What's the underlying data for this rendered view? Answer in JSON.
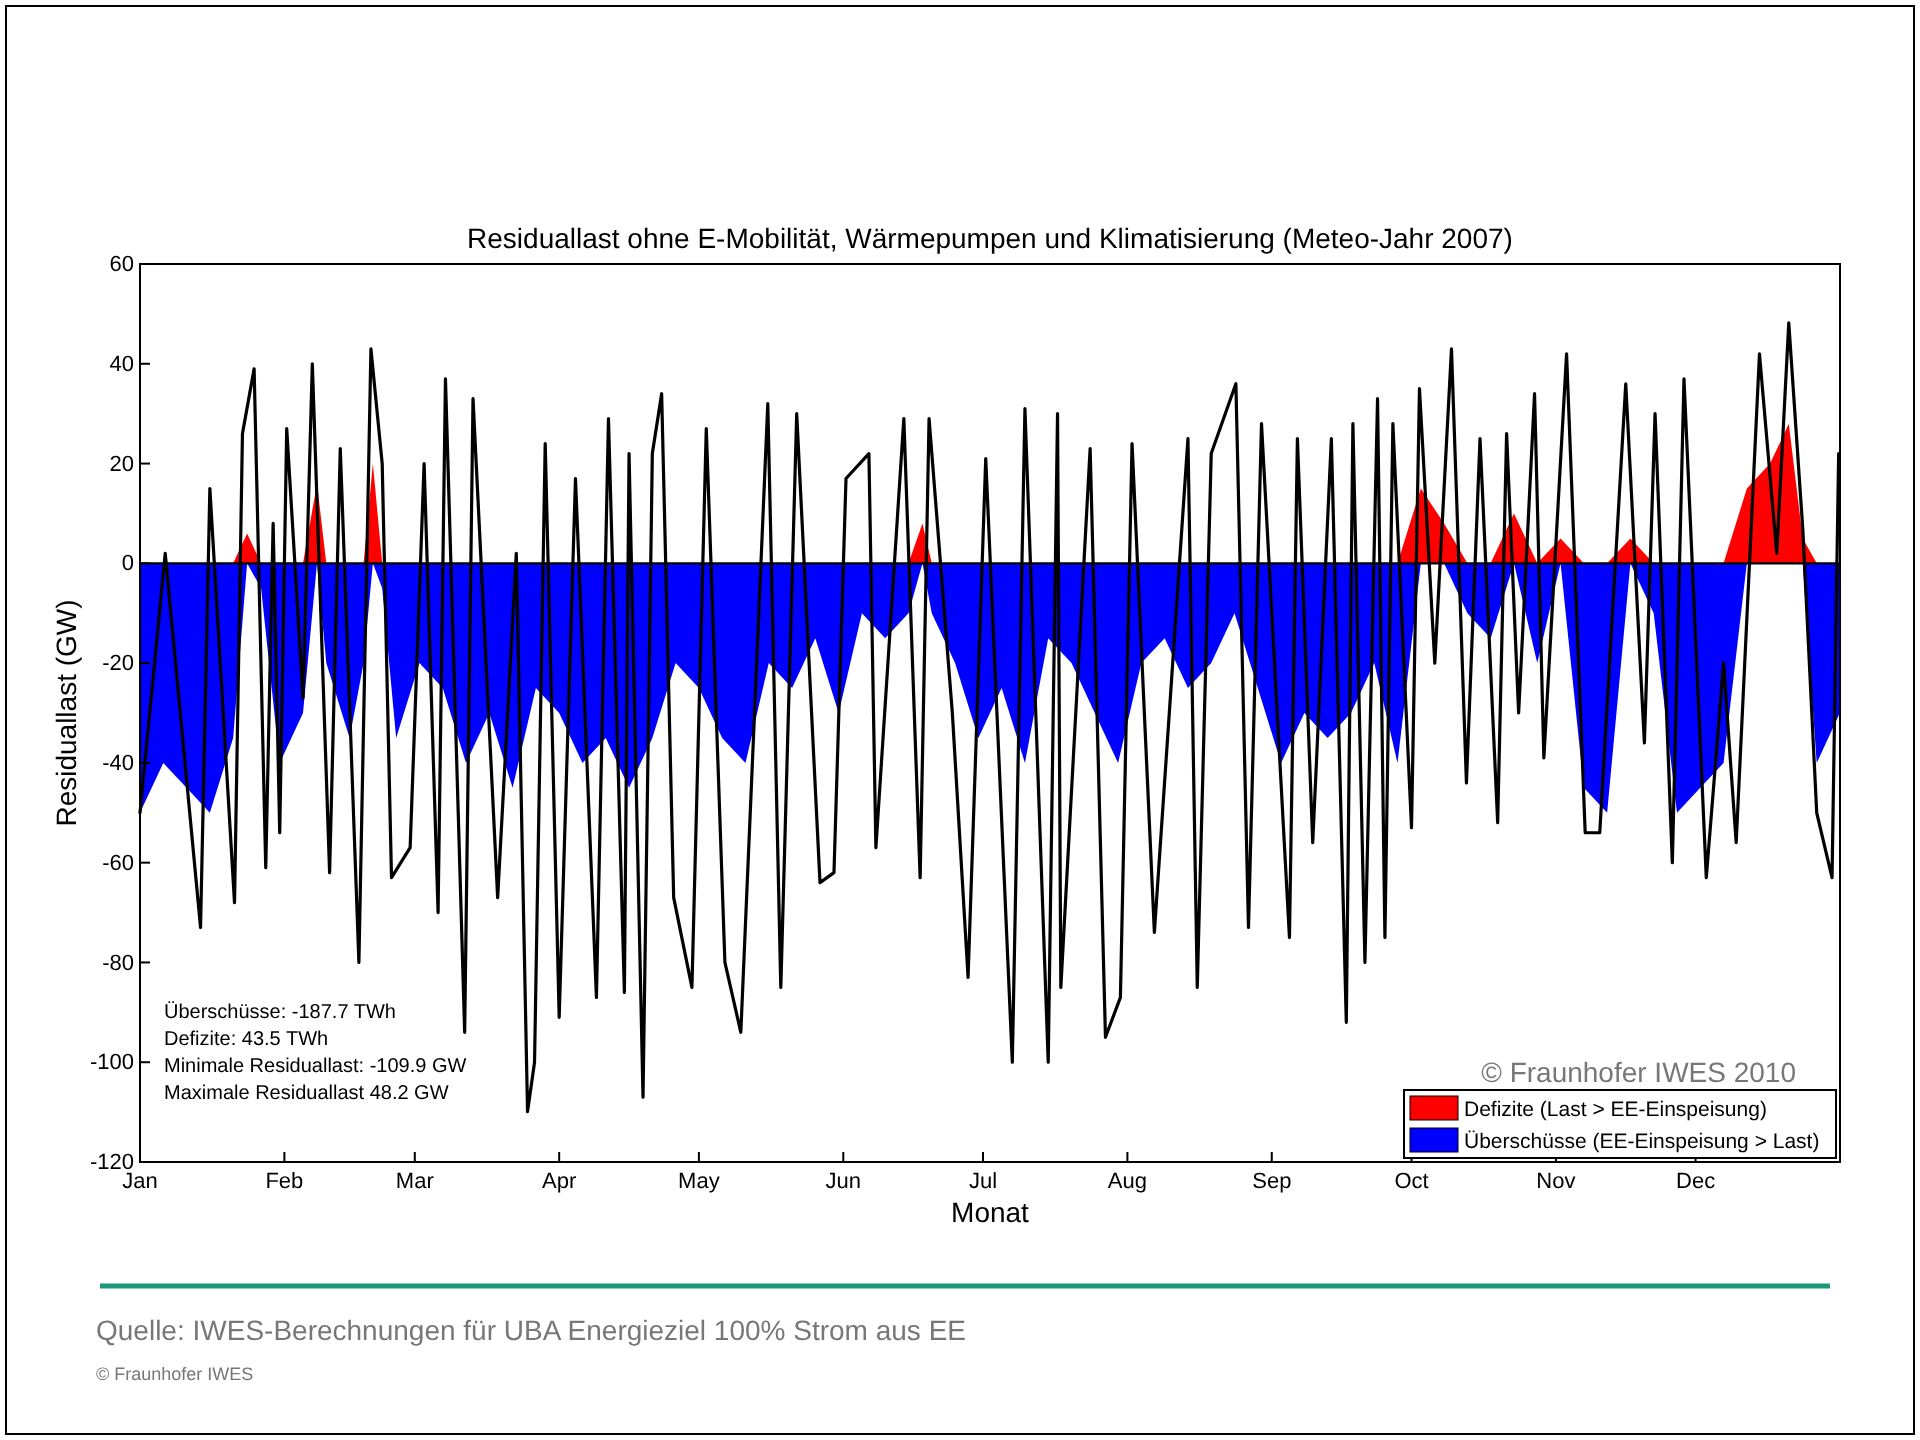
{
  "chart_data": {
    "type": "line",
    "title": "Residuallast ohne E-Mobilität, Wärmepumpen und Klimatisierung (Meteo-Jahr 2007)",
    "xlabel": "Monat",
    "ylabel": "Residuallast (GW)",
    "xlim": [
      "2007-01-01",
      "2008-01-01"
    ],
    "xticks": [
      {
        "value": "2007-01-01",
        "label": "Jan"
      },
      {
        "value": "2007-02-01",
        "label": "Feb"
      },
      {
        "value": "2007-03-01",
        "label": "Mar"
      },
      {
        "value": "2007-04-01",
        "label": "Apr"
      },
      {
        "value": "2007-05-01",
        "label": "May"
      },
      {
        "value": "2007-06-01",
        "label": "Jun"
      },
      {
        "value": "2007-07-01",
        "label": "Jul"
      },
      {
        "value": "2007-08-01",
        "label": "Aug"
      },
      {
        "value": "2007-09-01",
        "label": "Sep"
      },
      {
        "value": "2007-10-01",
        "label": "Oct"
      },
      {
        "value": "2007-11-01",
        "label": "Nov"
      },
      {
        "value": "2007-12-01",
        "label": "Dec"
      }
    ],
    "ylim": [
      -120,
      60
    ],
    "yticks": [
      -120,
      -100,
      -80,
      -60,
      -40,
      -20,
      0,
      20,
      40,
      60
    ],
    "grid": false,
    "legend": "bottom right",
    "ref_lines": [
      {
        "axis": "y",
        "value": 0,
        "color": "#000000"
      }
    ],
    "series": [
      {
        "name": "Defizite (Last > EE-Einspeisung)",
        "type": "area",
        "color": "#ff0000",
        "x": [
          "2007-01-01",
          "2007-01-06",
          "2007-01-11",
          "2007-01-16",
          "2007-01-21",
          "2007-01-24",
          "2007-01-27",
          "2007-01-31",
          "2007-02-05",
          "2007-02-08",
          "2007-02-10",
          "2007-02-15",
          "2007-02-18",
          "2007-02-20",
          "2007-02-22",
          "2007-02-25",
          "2007-03-02",
          "2007-03-07",
          "2007-03-12",
          "2007-03-17",
          "2007-03-22",
          "2007-03-27",
          "2007-04-01",
          "2007-04-06",
          "2007-04-11",
          "2007-04-16",
          "2007-04-21",
          "2007-04-26",
          "2007-05-01",
          "2007-05-06",
          "2007-05-11",
          "2007-05-16",
          "2007-05-21",
          "2007-05-26",
          "2007-05-31",
          "2007-06-05",
          "2007-06-10",
          "2007-06-15",
          "2007-06-18",
          "2007-06-20",
          "2007-06-25",
          "2007-06-30",
          "2007-07-05",
          "2007-07-10",
          "2007-07-15",
          "2007-07-20",
          "2007-07-25",
          "2007-07-30",
          "2007-08-04",
          "2007-08-09",
          "2007-08-14",
          "2007-08-19",
          "2007-08-24",
          "2007-08-29",
          "2007-09-03",
          "2007-09-08",
          "2007-09-13",
          "2007-09-18",
          "2007-09-23",
          "2007-09-28",
          "2007-10-03",
          "2007-10-08",
          "2007-10-13",
          "2007-10-18",
          "2007-10-23",
          "2007-10-28",
          "2007-11-02",
          "2007-11-07",
          "2007-11-12",
          "2007-11-17",
          "2007-11-22",
          "2007-11-27",
          "2007-12-02",
          "2007-12-07",
          "2007-12-12",
          "2007-12-17",
          "2007-12-21",
          "2007-12-24",
          "2007-12-27",
          "2007-12-31T23:00"
        ],
        "values": [
          0,
          0,
          0,
          0,
          0,
          6,
          0,
          0,
          0,
          16,
          0,
          0,
          0,
          20,
          0,
          0,
          0,
          0,
          0,
          0,
          0,
          0,
          0,
          0,
          0,
          0,
          0,
          0,
          0,
          0,
          0,
          0,
          0,
          0,
          0,
          0,
          0,
          0,
          8,
          0,
          0,
          0,
          0,
          0,
          0,
          0,
          0,
          0,
          0,
          0,
          0,
          0,
          0,
          0,
          0,
          0,
          0,
          0,
          0,
          0,
          15,
          8,
          0,
          0,
          10,
          0,
          5,
          0,
          0,
          5,
          0,
          0,
          0,
          0,
          15,
          20,
          28,
          5,
          0,
          0
        ]
      },
      {
        "name": "Überschüsse (EE-Einspeisung > Last)",
        "type": "area",
        "color": "#0000ff",
        "x": [
          "2007-01-01",
          "2007-01-06",
          "2007-01-11",
          "2007-01-16",
          "2007-01-21",
          "2007-01-24",
          "2007-01-27",
          "2007-01-31",
          "2007-02-05",
          "2007-02-08",
          "2007-02-10",
          "2007-02-15",
          "2007-02-18",
          "2007-02-20",
          "2007-02-22",
          "2007-02-25",
          "2007-03-02",
          "2007-03-07",
          "2007-03-12",
          "2007-03-17",
          "2007-03-22",
          "2007-03-27",
          "2007-04-01",
          "2007-04-06",
          "2007-04-11",
          "2007-04-16",
          "2007-04-21",
          "2007-04-26",
          "2007-05-01",
          "2007-05-06",
          "2007-05-11",
          "2007-05-16",
          "2007-05-21",
          "2007-05-26",
          "2007-05-31",
          "2007-06-05",
          "2007-06-10",
          "2007-06-15",
          "2007-06-18",
          "2007-06-20",
          "2007-06-25",
          "2007-06-30",
          "2007-07-05",
          "2007-07-10",
          "2007-07-15",
          "2007-07-20",
          "2007-07-25",
          "2007-07-30",
          "2007-08-04",
          "2007-08-09",
          "2007-08-14",
          "2007-08-19",
          "2007-08-24",
          "2007-08-29",
          "2007-09-03",
          "2007-09-08",
          "2007-09-13",
          "2007-09-18",
          "2007-09-23",
          "2007-09-28",
          "2007-10-03",
          "2007-10-08",
          "2007-10-13",
          "2007-10-18",
          "2007-10-23",
          "2007-10-28",
          "2007-11-02",
          "2007-11-07",
          "2007-11-12",
          "2007-11-17",
          "2007-11-22",
          "2007-11-27",
          "2007-12-02",
          "2007-12-07",
          "2007-12-12",
          "2007-12-17",
          "2007-12-21",
          "2007-12-24",
          "2007-12-27",
          "2007-12-31T23:00"
        ],
        "values": [
          -50,
          -40,
          -45,
          -50,
          -35,
          0,
          -5,
          -40,
          -30,
          0,
          -20,
          -35,
          -20,
          0,
          -5,
          -35,
          -20,
          -25,
          -40,
          -30,
          -45,
          -25,
          -30,
          -40,
          -35,
          -45,
          -35,
          -20,
          -25,
          -35,
          -40,
          -20,
          -25,
          -15,
          -30,
          -10,
          -15,
          -10,
          0,
          -10,
          -20,
          -35,
          -25,
          -40,
          -15,
          -20,
          -30,
          -40,
          -20,
          -15,
          -25,
          -20,
          -10,
          -25,
          -40,
          -30,
          -35,
          -30,
          -20,
          -40,
          0,
          0,
          -10,
          -15,
          0,
          -20,
          0,
          -45,
          -50,
          0,
          -10,
          -50,
          -45,
          -40,
          0,
          0,
          0,
          0,
          -40,
          -30
        ]
      },
      {
        "color": "#000000",
        "x": [
          "2007-01-01",
          "2007-01-06T10:00",
          "2007-01-14",
          "2007-01-16",
          "2007-01-21T07:00",
          "2007-01-23",
          "2007-01-25T12:00",
          "2007-01-28",
          "2007-01-29T14:00",
          "2007-01-31",
          "2007-02-01T12:00",
          "2007-02-05",
          "2007-02-07",
          "2007-02-10T17:00",
          "2007-02-13",
          "2007-02-17",
          "2007-02-19T14:00",
          "2007-02-22",
          "2007-02-24",
          "2007-02-28",
          "2007-03-03",
          "2007-03-06",
          "2007-03-07T14:00",
          "2007-03-11T17:00",
          "2007-03-13T12:00",
          "2007-03-18T19:00",
          "2007-03-22T19:00",
          "2007-03-25T05:00",
          "2007-03-26T17:00",
          "2007-03-29",
          "2007-04-01",
          "2007-04-04T12:00",
          "2007-04-09",
          "2007-04-11T14:00",
          "2007-04-15",
          "2007-04-16",
          "2007-04-19",
          "2007-04-21",
          "2007-04-23",
          "2007-04-25T14:00",
          "2007-04-29T12:00",
          "2007-05-02T14:00",
          "2007-05-06T14:00",
          "2007-05-10",
          "2007-05-15T19:00",
          "2007-05-18T14:00",
          "2007-05-22",
          "2007-05-27",
          "2007-05-30",
          "2007-06-01T14:00",
          "2007-06-06T12:00",
          "2007-06-08",
          "2007-06-14",
          "2007-06-17T12:00",
          "2007-06-19T10:00",
          "2007-06-24T10:00",
          "2007-06-27T19:00",
          "2007-07-01T14:00",
          "2007-07-07T07:00",
          "2007-07-10",
          "2007-07-15",
          "2007-07-17",
          "2007-07-17T17:00",
          "2007-07-24",
          "2007-07-27T07:00",
          "2007-07-30T12:00",
          "2007-08-02",
          "2007-08-06T19:00",
          "2007-08-14",
          "2007-08-16",
          "2007-08-19",
          "2007-08-24T07:00",
          "2007-08-27",
          "2007-08-29T19:00",
          "2007-09-04T19:00",
          "2007-09-06T12:00",
          "2007-09-09T19:00",
          "2007-09-13T19:00",
          "2007-09-17",
          "2007-09-18T10:00",
          "2007-09-21",
          "2007-09-23T17:00",
          "2007-09-25T07:00",
          "2007-09-27",
          "2007-10-01",
          "2007-10-02T17:00",
          "2007-10-06",
          "2007-10-09T14:00",
          "2007-10-12T19:00",
          "2007-10-15T17:00",
          "2007-10-19T12:00",
          "2007-10-21T10:00",
          "2007-10-24",
          "2007-10-27T10:00",
          "2007-10-29T10:00",
          "2007-11-03T07:00",
          "2007-11-07T07:00",
          "2007-11-10T10:00",
          "2007-11-16",
          "2007-11-20",
          "2007-11-22T07:00",
          "2007-11-26",
          "2007-11-28T12:00",
          "2007-12-03T07:00",
          "2007-12-07",
          "2007-12-09T17:00",
          "2007-12-14T17:00",
          "2007-12-18T10:00",
          "2007-12-21",
          "2007-12-24",
          "2007-12-27",
          "2007-12-30T07:00",
          "2007-12-31T17:00"
        ],
        "values": [
          -50,
          2,
          -73,
          15,
          -68,
          26,
          39,
          -61,
          8,
          -54,
          27,
          -27,
          40,
          -62,
          23,
          -80,
          43,
          20,
          -63,
          -57,
          20,
          -70,
          37,
          -94,
          33,
          -67,
          2,
          -109.9,
          -100,
          24,
          -91,
          17,
          -87,
          29,
          -86,
          22,
          -107,
          22,
          34,
          -67,
          -85,
          27,
          -80,
          -94,
          32,
          -85,
          30,
          -64,
          -62,
          17,
          22,
          -57,
          29,
          -63,
          29,
          -30,
          -83,
          21,
          -100,
          31,
          -100,
          30,
          -85,
          23,
          -95,
          -87,
          24,
          -74,
          25,
          -85,
          22,
          36,
          -73,
          28,
          -75,
          25,
          -56,
          25,
          -92,
          28,
          -80,
          33,
          -75,
          28,
          -53,
          35,
          -20,
          43,
          -44,
          25,
          -52,
          26,
          -30,
          34,
          -39,
          42,
          -54,
          -54,
          36,
          -36,
          30,
          -60,
          37,
          -63,
          -20,
          -56,
          42,
          2,
          48.2,
          7,
          -50,
          -63,
          22
        ]
      }
    ],
    "annotations": [
      "Überschüsse: -187.7 TWh",
      "Defizite: 43.5 TWh",
      "Minimale Residuallast: -109.9 GW",
      "Maximale Residuallast 48.2 GW",
      "© Fraunhofer IWES 2010",
      "Quelle:  IWES-Berechnungen für UBA Energieziel 100% Strom aus EE",
      "© Fraunhofer IWES"
    ]
  }
}
